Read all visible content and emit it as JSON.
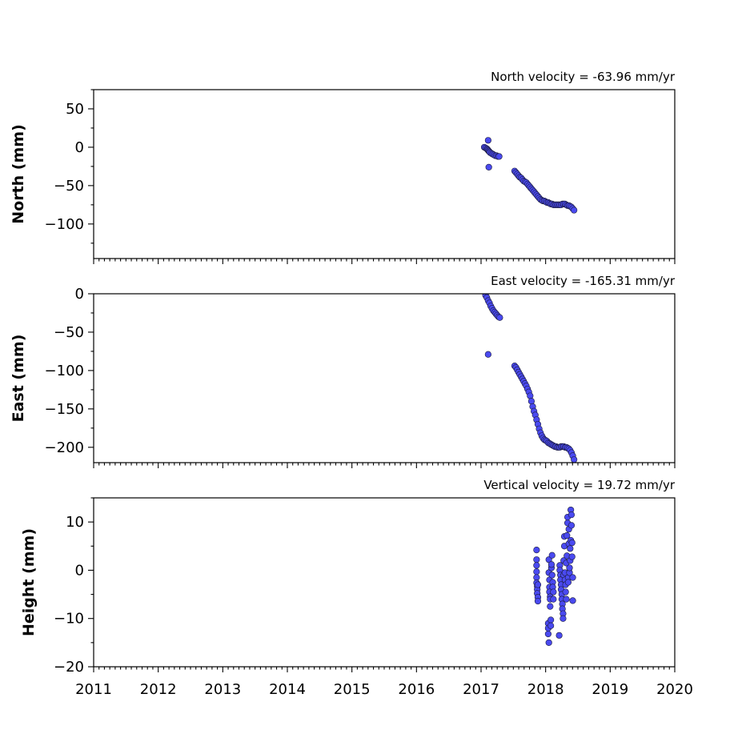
{
  "chart_data": [
    {
      "type": "scatter",
      "title": "North velocity = -63.96 mm/yr",
      "ylabel": "North (mm)",
      "ylim": [
        -145,
        75
      ],
      "yticks": [
        50,
        0,
        -50,
        -100
      ],
      "ytick_labels": [
        "50",
        "0",
        "−50",
        "−100"
      ],
      "xlim": [
        2011,
        2020
      ],
      "color": "#4a4af0",
      "series": [
        {
          "x": [
            2017.05,
            2017.07,
            2017.09,
            2017.1,
            2017.11,
            2017.12,
            2017.13,
            2017.14,
            2017.16,
            2017.18,
            2017.2,
            2017.22,
            2017.24,
            2017.26,
            2017.28,
            2017.11,
            2017.12,
            2017.52,
            2017.54,
            2017.56,
            2017.58,
            2017.6,
            2017.62,
            2017.64,
            2017.66,
            2017.68,
            2017.7,
            2017.72,
            2017.74,
            2017.76,
            2017.78,
            2017.8,
            2017.82,
            2017.84,
            2017.86,
            2017.88,
            2017.9,
            2017.92,
            2017.94,
            2017.96,
            2017.98,
            2018.0,
            2018.02,
            2018.04,
            2018.06,
            2018.08,
            2018.1,
            2018.12,
            2018.14,
            2018.16,
            2018.18,
            2018.2,
            2018.22,
            2018.24,
            2018.26,
            2018.28,
            2018.3,
            2018.32,
            2018.34,
            2018.36,
            2018.38,
            2018.4,
            2018.42,
            2018.44
          ],
          "y": [
            0,
            -1,
            -2,
            -3,
            -4,
            -5,
            -6,
            -7,
            -8,
            -9,
            -10,
            -11,
            -11,
            -12,
            -12,
            9,
            -26,
            -31,
            -33,
            -35,
            -37,
            -39,
            -40,
            -42,
            -44,
            -45,
            -46,
            -48,
            -50,
            -52,
            -54,
            -56,
            -58,
            -60,
            -62,
            -64,
            -66,
            -68,
            -69,
            -70,
            -70,
            -71,
            -72,
            -72,
            -73,
            -74,
            -74,
            -75,
            -75,
            -75,
            -75,
            -75,
            -75,
            -75,
            -74,
            -74,
            -74,
            -75,
            -76,
            -76,
            -77,
            -78,
            -80,
            -82
          ]
        }
      ]
    },
    {
      "type": "scatter",
      "title": "East velocity = -165.31 mm/yr",
      "ylabel": "East (mm)",
      "ylim": [
        -220,
        0
      ],
      "yticks": [
        0,
        -50,
        -100,
        -150,
        -200
      ],
      "ytick_labels": [
        "0",
        "−50",
        "−100",
        "−150",
        "−200"
      ],
      "xlim": [
        2011,
        2020
      ],
      "color": "#4a4af0",
      "series": [
        {
          "x": [
            2017.07,
            2017.09,
            2017.11,
            2017.13,
            2017.15,
            2017.17,
            2017.19,
            2017.21,
            2017.23,
            2017.25,
            2017.27,
            2017.29,
            2017.11,
            2017.52,
            2017.54,
            2017.56,
            2017.58,
            2017.6,
            2017.62,
            2017.64,
            2017.66,
            2017.68,
            2017.7,
            2017.72,
            2017.74,
            2017.76,
            2017.78,
            2017.8,
            2017.82,
            2017.84,
            2017.86,
            2017.88,
            2017.9,
            2017.92,
            2017.94,
            2017.96,
            2017.98,
            2018.0,
            2018.02,
            2018.04,
            2018.06,
            2018.08,
            2018.1,
            2018.12,
            2018.14,
            2018.16,
            2018.18,
            2018.2,
            2018.22,
            2018.24,
            2018.26,
            2018.28,
            2018.3,
            2018.32,
            2018.34,
            2018.36,
            2018.38,
            2018.4,
            2018.42,
            2018.44
          ],
          "y": [
            -2,
            -5,
            -9,
            -12,
            -16,
            -19,
            -22,
            -24,
            -26,
            -28,
            -30,
            -31,
            -79,
            -94,
            -96,
            -99,
            -102,
            -105,
            -108,
            -111,
            -114,
            -117,
            -120,
            -124,
            -128,
            -133,
            -140,
            -147,
            -153,
            -158,
            -164,
            -170,
            -176,
            -181,
            -185,
            -188,
            -190,
            -191,
            -192,
            -194,
            -195,
            -196,
            -197,
            -198,
            -199,
            -199,
            -200,
            -200,
            -200,
            -199,
            -199,
            -199,
            -200,
            -200,
            -201,
            -202,
            -204,
            -207,
            -211,
            -216
          ]
        }
      ]
    },
    {
      "type": "scatter",
      "title": "Vertical velocity = 19.72 mm/yr",
      "ylabel": "Height (mm)",
      "ylim": [
        -20,
        15
      ],
      "yticks": [
        10,
        0,
        -10,
        -20
      ],
      "ytick_labels": [
        "10",
        "0",
        "−10",
        "−20"
      ],
      "xlim": [
        2011,
        2020
      ],
      "xticks": [
        2011,
        2012,
        2013,
        2014,
        2015,
        2016,
        2017,
        2018,
        2019,
        2020
      ],
      "xtick_labels": [
        "2011",
        "2012",
        "2013",
        "2014",
        "2015",
        "2016",
        "2017",
        "2018",
        "2019",
        "2020"
      ],
      "color": "#4a4af0",
      "series": [
        {
          "x": [
            2017.86,
            2017.86,
            2017.86,
            2017.86,
            2017.86,
            2017.86,
            2017.87,
            2017.87,
            2017.87,
            2017.88,
            2017.88,
            2017.88,
            2018.04,
            2018.04,
            2018.04,
            2018.05,
            2018.05,
            2018.05,
            2018.06,
            2018.06,
            2018.06,
            2018.07,
            2018.07,
            2018.07,
            2018.08,
            2018.08,
            2018.09,
            2018.09,
            2018.1,
            2018.1,
            2018.11,
            2018.11,
            2018.12,
            2018.12,
            2018.21,
            2018.22,
            2018.22,
            2018.23,
            2018.23,
            2018.24,
            2018.24,
            2018.25,
            2018.25,
            2018.26,
            2018.26,
            2018.27,
            2018.27,
            2018.28,
            2018.28,
            2018.29,
            2018.29,
            2018.3,
            2018.3,
            2018.31,
            2018.31,
            2018.32,
            2018.32,
            2018.33,
            2018.33,
            2018.34,
            2018.34,
            2018.35,
            2018.35,
            2018.36,
            2018.36,
            2018.37,
            2018.37,
            2018.38,
            2018.38,
            2018.39,
            2018.39,
            2018.4,
            2018.4,
            2018.41,
            2018.41,
            2018.42,
            2018.42
          ],
          "y": [
            4.2,
            2.2,
            1.0,
            -0.3,
            -1.5,
            -2.6,
            -3.3,
            -4.0,
            -4.8,
            -5.6,
            -6.4,
            -3.0,
            -11.0,
            -12.0,
            -13.2,
            -15.0,
            2.2,
            -0.5,
            -2.0,
            -3.5,
            -4.5,
            -5.5,
            -6.0,
            -7.5,
            -10.3,
            -11.5,
            0.5,
            1.2,
            3.1,
            -1.0,
            -2.5,
            -3.5,
            -6.0,
            -4.5,
            -13.5,
            1.0,
            0.0,
            -1.0,
            -2.0,
            -3.0,
            -4.0,
            -5.0,
            -6.0,
            -7.0,
            -8.0,
            -9.0,
            -10.0,
            2.0,
            -1.0,
            5.0,
            7.0,
            -0.5,
            -2.0,
            -3.0,
            -4.5,
            -6.0,
            1.5,
            3.0,
            7.2,
            9.8,
            11.0,
            -1.5,
            -2.5,
            5.5,
            8.5,
            -0.5,
            0.5,
            2.0,
            4.5,
            6.2,
            12.5,
            11.5,
            9.3,
            5.7,
            2.8,
            -1.5,
            -6.3
          ]
        }
      ]
    }
  ]
}
